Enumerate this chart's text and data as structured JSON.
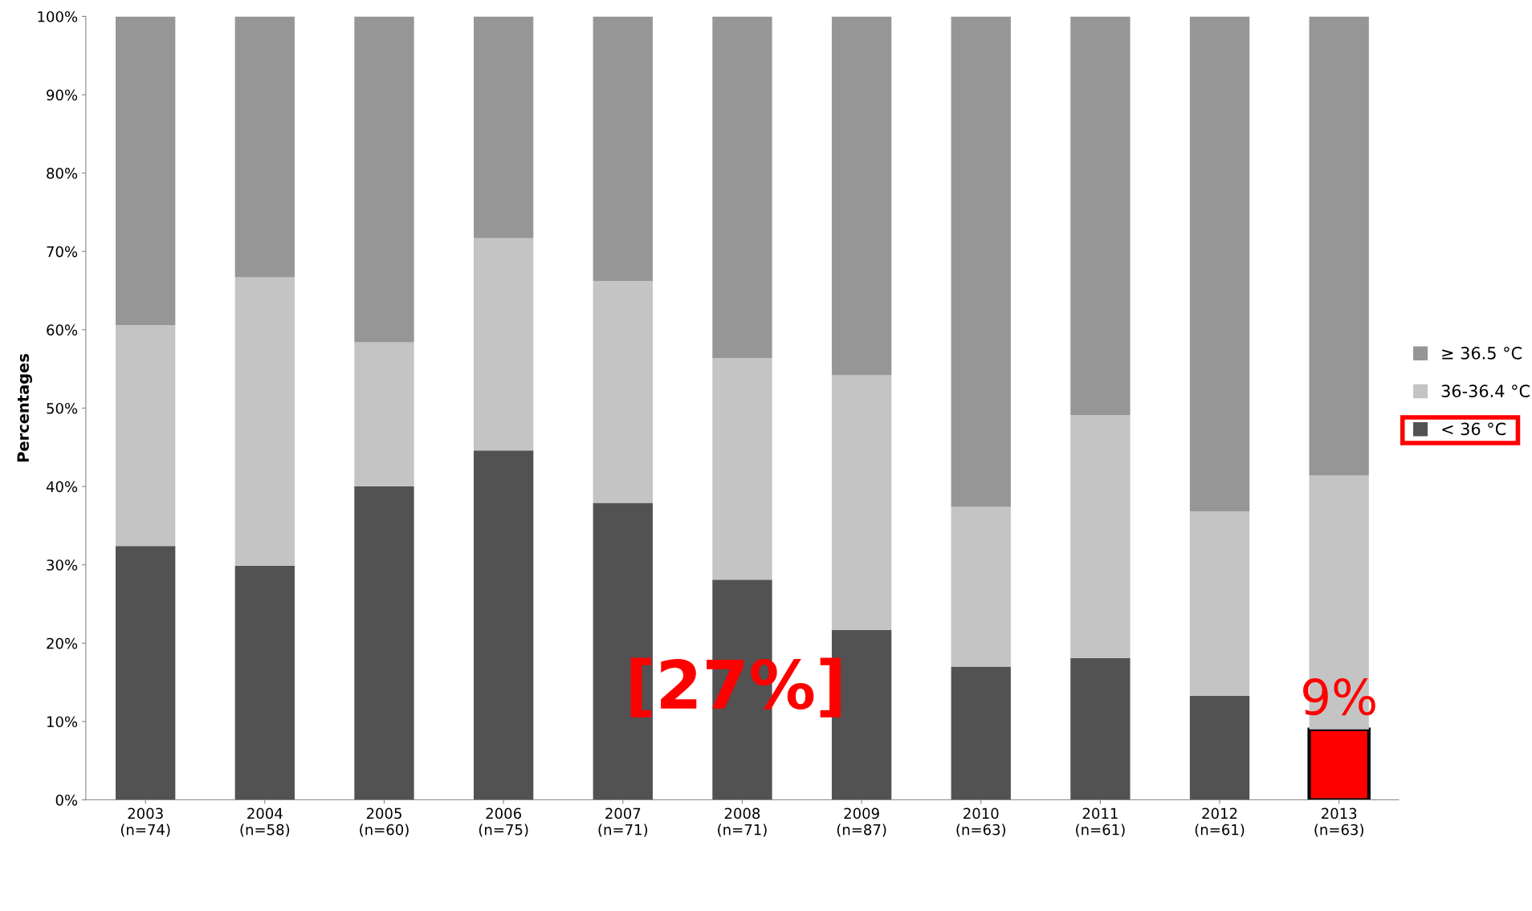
{
  "chart_data": {
    "type": "bar",
    "stacked": true,
    "ylabel": "Percentages",
    "categories": [
      "2003\n(n=74)",
      "2004\n(n=58)",
      "2005\n(n=60)",
      "2006\n(n=75)",
      "2007\n(n=71)",
      "2008\n(n=71)",
      "2009\n(n=87)",
      "2010\n(n=63)",
      "2011\n(n=61)",
      "2012\n(n=61)",
      "2013\n(n=63)"
    ],
    "series": [
      {
        "name": "< 36 °C",
        "color": "#525252",
        "colors": [
          "#525252",
          "#525252",
          "#525252",
          "#525252",
          "#525252",
          "#525252",
          "#525252",
          "#525252",
          "#525252",
          "#525252",
          "#ff0000"
        ],
        "values": [
          32.4,
          29.9,
          40.0,
          44.6,
          37.9,
          28.1,
          21.7,
          17.0,
          18.1,
          13.3,
          9
        ]
      },
      {
        "name": "36-36.4 °C",
        "color": "#c4c4c4",
        "values": [
          28.2,
          36.8,
          18.4,
          27.1,
          28.3,
          28.3,
          32.5,
          20.4,
          31.0,
          23.5,
          32.4
        ]
      },
      {
        "name": "≥ 36.5 °C",
        "color": "#969696",
        "values": [
          39.4,
          33.3,
          41.6,
          28.3,
          33.8,
          43.6,
          45.8,
          62.6,
          50.9,
          63.2,
          58.6
        ]
      }
    ],
    "ylim": [
      0,
      100
    ],
    "yticks": [
      {
        "value": 0,
        "label": "0%"
      },
      {
        "value": 10,
        "label": "10%"
      },
      {
        "value": 20,
        "label": "20%"
      },
      {
        "value": 30,
        "label": "30%"
      },
      {
        "value": 40,
        "label": "40%"
      },
      {
        "value": 50,
        "label": "50%"
      },
      {
        "value": 60,
        "label": "60%"
      },
      {
        "value": 70,
        "label": "70%"
      },
      {
        "value": 80,
        "label": "80%"
      },
      {
        "value": 90,
        "label": "90%"
      },
      {
        "value": 100,
        "label": "100%"
      }
    ],
    "grid": false,
    "legend": "right",
    "annotations": [
      "[27%]",
      {
        "text": "9%",
        "x": "2013\n(n=63)",
        "y": 9
      }
    ]
  }
}
